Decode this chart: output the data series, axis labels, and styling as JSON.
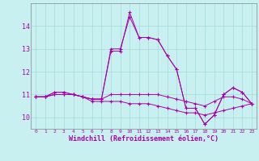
{
  "xlabel": "Windchill (Refroidissement éolien,°C)",
  "background_color": "#c8f0f0",
  "grid_color": "#aadddd",
  "line_color": "#aa00aa",
  "hours": [
    0,
    1,
    2,
    3,
    4,
    5,
    6,
    7,
    8,
    9,
    10,
    11,
    12,
    13,
    14,
    15,
    16,
    17,
    18,
    19,
    20,
    21,
    22,
    23
  ],
  "series1": [
    10.9,
    10.9,
    11.1,
    11.1,
    11.0,
    10.9,
    10.8,
    10.8,
    12.9,
    12.9,
    14.6,
    13.5,
    13.5,
    13.4,
    12.7,
    12.1,
    10.4,
    10.4,
    9.7,
    10.1,
    11.0,
    11.3,
    11.1,
    10.6
  ],
  "series2": [
    10.9,
    10.9,
    11.1,
    11.1,
    11.0,
    10.9,
    10.8,
    10.8,
    13.0,
    13.0,
    14.4,
    13.5,
    13.5,
    13.4,
    12.7,
    12.1,
    10.4,
    10.4,
    9.7,
    10.1,
    11.0,
    11.3,
    11.1,
    10.6
  ],
  "series3": [
    10.9,
    10.9,
    11.0,
    11.0,
    11.0,
    10.9,
    10.8,
    10.8,
    11.0,
    11.0,
    11.0,
    11.0,
    11.0,
    11.0,
    10.9,
    10.8,
    10.7,
    10.6,
    10.5,
    10.7,
    10.9,
    10.9,
    10.8,
    10.6
  ],
  "series4": [
    10.9,
    10.9,
    11.0,
    11.0,
    11.0,
    10.9,
    10.7,
    10.7,
    10.7,
    10.7,
    10.6,
    10.6,
    10.6,
    10.5,
    10.4,
    10.3,
    10.2,
    10.2,
    10.1,
    10.2,
    10.3,
    10.4,
    10.5,
    10.6
  ],
  "ylim": [
    9.5,
    15.0
  ],
  "yticks": [
    10,
    11,
    12,
    13,
    14
  ],
  "xtick_labels": [
    "0",
    "1",
    "2",
    "3",
    "4",
    "5",
    "6",
    "7",
    "8",
    "9",
    "10",
    "11",
    "12",
    "13",
    "14",
    "15",
    "16",
    "17",
    "18",
    "19",
    "20",
    "21",
    "22",
    "23"
  ]
}
